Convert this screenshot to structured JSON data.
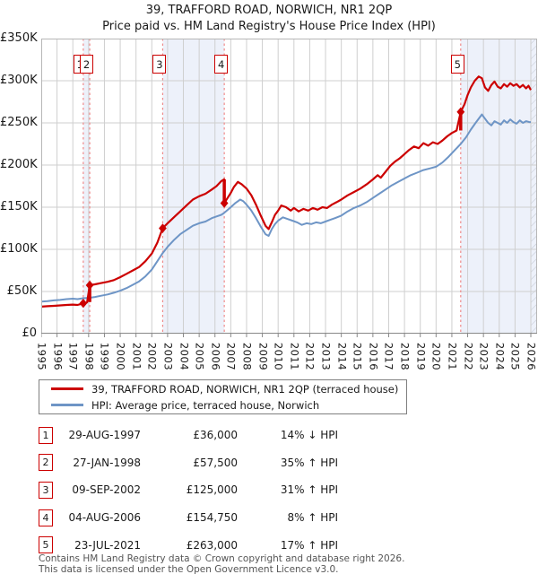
{
  "title": {
    "line1": "39, TRAFFORD ROAD, NORWICH, NR1 2QP",
    "line2": "Price paid vs. HM Land Registry's House Price Index (HPI)"
  },
  "chart_data": {
    "type": "line",
    "x_axis": {
      "start": 1995,
      "end": 2026,
      "tick_labels": [
        "1995",
        "1996",
        "1997",
        "1998",
        "1999",
        "2000",
        "2001",
        "2002",
        "2003",
        "2004",
        "2005",
        "2006",
        "2007",
        "2008",
        "2009",
        "2010",
        "2011",
        "2012",
        "2013",
        "2014",
        "2015",
        "2016",
        "2017",
        "2018",
        "2019",
        "2020",
        "2021",
        "2022",
        "2023",
        "2024",
        "2025",
        "2026"
      ]
    },
    "y_axis": {
      "min": 0,
      "max": 350000,
      "ticks": [
        {
          "value": 350000,
          "label": "£350K"
        },
        {
          "value": 300000,
          "label": "£300K"
        },
        {
          "value": 250000,
          "label": "£250K"
        },
        {
          "value": 200000,
          "label": "£200K"
        },
        {
          "value": 150000,
          "label": "£150K"
        },
        {
          "value": 100000,
          "label": "£100K"
        },
        {
          "value": 50000,
          "label": "£50K"
        },
        {
          "value": 0,
          "label": "£0"
        }
      ]
    },
    "grid": true,
    "legend_position": "below",
    "series": [
      {
        "name": "39, TRAFFORD ROAD, NORWICH, NR1 2QP (terraced house)",
        "color": "#cc0000",
        "x": [
          1995.0,
          1995.4,
          1995.8,
          1996.2,
          1996.6,
          1997.0,
          1997.3,
          1997.66,
          1997.9,
          1998.07,
          1998.4,
          1998.8,
          1999.2,
          1999.6,
          2000.0,
          2000.4,
          2000.8,
          2001.2,
          2001.6,
          2002.0,
          2002.35,
          2002.69,
          2003.0,
          2003.4,
          2003.8,
          2004.2,
          2004.6,
          2005.0,
          2005.4,
          2005.8,
          2006.1,
          2006.4,
          2006.58,
          2006.59,
          2006.8,
          2007.0,
          2007.2,
          2007.45,
          2007.7,
          2008.0,
          2008.3,
          2008.6,
          2008.9,
          2009.2,
          2009.4,
          2009.6,
          2009.8,
          2010.0,
          2010.2,
          2010.5,
          2010.8,
          2011.0,
          2011.3,
          2011.6,
          2011.9,
          2012.2,
          2012.5,
          2012.8,
          2013.1,
          2013.4,
          2013.7,
          2014.0,
          2014.4,
          2014.8,
          2015.2,
          2015.6,
          2016.0,
          2016.3,
          2016.5,
          2016.8,
          2017.1,
          2017.4,
          2017.7,
          2018.0,
          2018.3,
          2018.6,
          2018.9,
          2019.2,
          2019.5,
          2019.8,
          2020.1,
          2020.4,
          2020.7,
          2021.0,
          2021.3,
          2021.56,
          2021.8,
          2022.0,
          2022.2,
          2022.45,
          2022.7,
          2022.9,
          2023.1,
          2023.3,
          2023.5,
          2023.7,
          2023.9,
          2024.1,
          2024.3,
          2024.5,
          2024.7,
          2024.9,
          2025.1,
          2025.3,
          2025.5,
          2025.7,
          2025.85,
          2026.0
        ],
        "values": [
          32000,
          32500,
          33000,
          33500,
          34000,
          34500,
          34000,
          36000,
          37000,
          57500,
          58500,
          60000,
          61500,
          63500,
          67000,
          71000,
          75000,
          79000,
          86000,
          95000,
          108000,
          125000,
          131000,
          138000,
          145000,
          152000,
          159000,
          163000,
          166000,
          171000,
          175000,
          181000,
          183000,
          154750,
          161000,
          167000,
          174000,
          180000,
          177000,
          172000,
          164000,
          153000,
          140000,
          128000,
          124000,
          132000,
          141000,
          146000,
          152000,
          150000,
          146000,
          149000,
          145000,
          148000,
          146000,
          149000,
          147000,
          150000,
          149000,
          153000,
          156000,
          159000,
          164000,
          168000,
          172000,
          177000,
          183000,
          188000,
          185000,
          192000,
          199000,
          204000,
          208000,
          213000,
          218000,
          222000,
          220000,
          226000,
          223000,
          227000,
          225000,
          229000,
          234000,
          238000,
          241000,
          263000,
          272000,
          283000,
          292000,
          300000,
          305000,
          303000,
          292000,
          288000,
          295000,
          299000,
          293000,
          291000,
          296000,
          293000,
          297000,
          294000,
          296000,
          292000,
          295000,
          291000,
          294000,
          289000
        ]
      },
      {
        "name": "HPI: Average price, terraced house, Norwich",
        "color": "#6e95c6",
        "x": [
          1995.0,
          1995.4,
          1995.8,
          1996.2,
          1996.6,
          1997.0,
          1997.3,
          1997.66,
          1998.07,
          1998.4,
          1998.8,
          1999.2,
          1999.6,
          2000.0,
          2000.4,
          2000.8,
          2001.2,
          2001.6,
          2002.0,
          2002.35,
          2002.69,
          2003.0,
          2003.4,
          2003.8,
          2004.2,
          2004.6,
          2005.0,
          2005.4,
          2005.8,
          2006.1,
          2006.4,
          2006.59,
          2007.0,
          2007.3,
          2007.6,
          2007.8,
          2008.0,
          2008.3,
          2008.6,
          2008.9,
          2009.2,
          2009.4,
          2009.6,
          2009.8,
          2010.0,
          2010.3,
          2010.6,
          2010.9,
          2011.2,
          2011.5,
          2011.8,
          2012.1,
          2012.4,
          2012.7,
          2013.0,
          2013.3,
          2013.6,
          2014.0,
          2014.4,
          2014.8,
          2015.2,
          2015.6,
          2016.0,
          2016.4,
          2016.8,
          2017.2,
          2017.6,
          2018.0,
          2018.4,
          2018.8,
          2019.2,
          2019.6,
          2020.0,
          2020.4,
          2020.8,
          2021.2,
          2021.56,
          2021.9,
          2022.2,
          2022.5,
          2022.9,
          2023.1,
          2023.3,
          2023.5,
          2023.7,
          2023.9,
          2024.1,
          2024.3,
          2024.5,
          2024.7,
          2024.9,
          2025.1,
          2025.3,
          2025.5,
          2025.7,
          2025.9,
          2026.0
        ],
        "values": [
          38000,
          38500,
          39500,
          40000,
          41000,
          41500,
          41000,
          42000,
          42600,
          43500,
          45000,
          46500,
          48500,
          51000,
          54000,
          58000,
          62000,
          68000,
          76000,
          86000,
          95500,
          103000,
          111000,
          118000,
          123000,
          128000,
          131000,
          133000,
          137000,
          139000,
          141000,
          143300,
          150000,
          155000,
          159000,
          157000,
          153000,
          146000,
          137000,
          127000,
          118000,
          116000,
          124000,
          130000,
          134000,
          138000,
          136000,
          134000,
          132000,
          129000,
          131000,
          130000,
          132000,
          131000,
          133000,
          135000,
          137000,
          140000,
          145000,
          149000,
          152000,
          156000,
          161000,
          166000,
          171000,
          176000,
          180000,
          184000,
          188000,
          191000,
          194000,
          196000,
          198000,
          203000,
          210000,
          218000,
          225000,
          233000,
          242000,
          250000,
          260000,
          255000,
          250000,
          247000,
          252000,
          250000,
          248000,
          253000,
          250000,
          254000,
          251000,
          249000,
          253000,
          250000,
          252000,
          251000,
          251000
        ]
      }
    ],
    "sales": [
      {
        "label": "1",
        "x": 1997.66,
        "price": 36000,
        "pre_value": 36000
      },
      {
        "label": "2",
        "x": 1998.07,
        "price": 57500,
        "pre_value": 37500
      },
      {
        "label": "3",
        "x": 2002.69,
        "price": 125000,
        "pre_value": 125000
      },
      {
        "label": "4",
        "x": 2006.59,
        "price": 154750,
        "pre_value": 183000
      },
      {
        "label": "5",
        "x": 2021.56,
        "price": 263000,
        "pre_value": 241000
      }
    ],
    "ownership_bands": [
      [
        1997.66,
        1998.07
      ],
      [
        2002.69,
        2006.59
      ],
      [
        2021.56,
        2026.45
      ]
    ],
    "future_hatch_start": 2026,
    "colors": {
      "price_paid": "#cc0000",
      "hpi": "#6e95c6",
      "sale_dash": "#ef8a8a",
      "ownership_band": "#edf1fa",
      "grid": "#cfcfcf",
      "axis": "#888888",
      "plot_border": "#b6b6b6",
      "hatch": "#c4c9d4",
      "marker_box_border": "#cc0000"
    }
  },
  "legend": [
    {
      "label": "39, TRAFFORD ROAD, NORWICH, NR1 2QP (terraced house)",
      "color": "#cc0000",
      "thickness": 3
    },
    {
      "label": "HPI: Average price, terraced house, Norwich",
      "color": "#6e95c6",
      "thickness": 2.5
    }
  ],
  "table": {
    "rows": [
      {
        "num": "1",
        "date": "29-AUG-1997",
        "price": "£36,000",
        "hpi": "14% ↓ HPI"
      },
      {
        "num": "2",
        "date": "27-JAN-1998",
        "price": "£57,500",
        "hpi": "35% ↑ HPI"
      },
      {
        "num": "3",
        "date": "09-SEP-2002",
        "price": "£125,000",
        "hpi": "31% ↑ HPI"
      },
      {
        "num": "4",
        "date": "04-AUG-2006",
        "price": "£154,750",
        "hpi": "8% ↑ HPI"
      },
      {
        "num": "5",
        "date": "23-JUL-2021",
        "price": "£263,000",
        "hpi": "17% ↑ HPI"
      }
    ]
  },
  "footer": {
    "line1": "Contains HM Land Registry data © Crown copyright and database right 2026.",
    "line2": "This data is licensed under the Open Government Licence v3.0."
  }
}
